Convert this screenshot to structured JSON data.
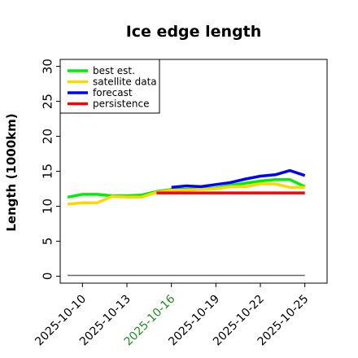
{
  "chart_data": {
    "type": "line",
    "title": "Ice edge length",
    "xlabel": "",
    "ylabel": "Length (1000km)",
    "ylim": [
      -1,
      31
    ],
    "xlim": [
      "2025-10-08T12:00",
      "2025-10-26T12:00"
    ],
    "yticks": [
      0,
      5,
      10,
      15,
      20,
      25,
      30
    ],
    "xticks": [
      "2025-10-10",
      "2025-10-13",
      "2025-10-16",
      "2025-10-19",
      "2025-10-22",
      "2025-10-25"
    ],
    "highlight_tick": "2025-10-16",
    "highlight_color": "#228B22",
    "legend_position": "top-left",
    "grid": false,
    "series": [
      {
        "name": "best est.",
        "color": "#00ee00",
        "x": [
          "2025-10-09",
          "2025-10-10",
          "2025-10-11",
          "2025-10-12",
          "2025-10-13",
          "2025-10-14",
          "2025-10-15",
          "2025-10-16",
          "2025-10-17",
          "2025-10-18",
          "2025-10-19",
          "2025-10-20",
          "2025-10-21",
          "2025-10-22",
          "2025-10-23",
          "2025-10-24",
          "2025-10-25"
        ],
        "values": [
          11.3,
          11.7,
          11.7,
          11.5,
          11.5,
          11.6,
          12.1,
          12.4,
          12.4,
          12.5,
          12.6,
          13.0,
          13.3,
          13.6,
          13.8,
          13.8,
          12.8
        ]
      },
      {
        "name": "satellite data",
        "color": "#ffd700",
        "x": [
          "2025-10-09",
          "2025-10-10",
          "2025-10-11",
          "2025-10-12",
          "2025-10-13",
          "2025-10-14",
          "2025-10-15",
          "2025-10-16",
          "2025-10-17",
          "2025-10-18",
          "2025-10-19",
          "2025-10-20",
          "2025-10-21",
          "2025-10-22",
          "2025-10-23",
          "2025-10-24",
          "2025-10-25"
        ],
        "values": [
          10.3,
          10.5,
          10.5,
          11.4,
          11.3,
          11.3,
          12.0,
          12.3,
          12.3,
          12.4,
          12.5,
          12.8,
          12.8,
          13.2,
          13.2,
          12.7,
          12.7
        ]
      },
      {
        "name": "forecast",
        "color": "#0000ff",
        "x": [
          "2025-10-16",
          "2025-10-17",
          "2025-10-18",
          "2025-10-19",
          "2025-10-20",
          "2025-10-21",
          "2025-10-22",
          "2025-10-23",
          "2025-10-24",
          "2025-10-25"
        ],
        "values": [
          12.7,
          12.9,
          12.8,
          13.1,
          13.4,
          13.9,
          14.3,
          14.5,
          15.1,
          14.4
        ]
      },
      {
        "name": "persistence",
        "color": "#ff0000",
        "x": [
          "2025-10-15",
          "2025-10-16",
          "2025-10-17",
          "2025-10-18",
          "2025-10-19",
          "2025-10-20",
          "2025-10-21",
          "2025-10-22",
          "2025-10-23",
          "2025-10-24",
          "2025-10-25"
        ],
        "values": [
          11.9,
          11.9,
          11.9,
          11.9,
          11.9,
          11.9,
          11.9,
          11.9,
          11.9,
          11.9,
          11.9
        ]
      },
      {
        "name": "",
        "color": "#666666",
        "x": [
          "2025-10-09",
          "2025-10-25"
        ],
        "values": [
          0.1,
          0.1
        ]
      }
    ]
  }
}
